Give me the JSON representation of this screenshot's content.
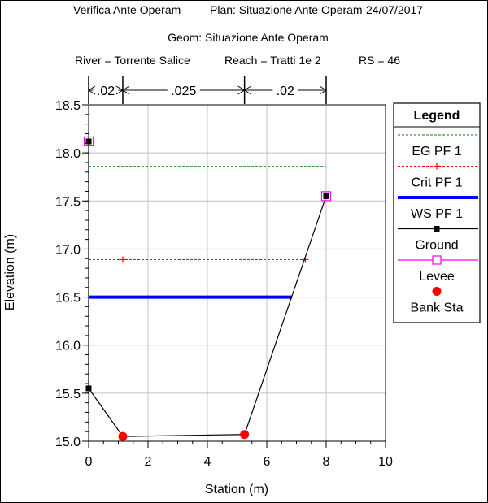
{
  "header": {
    "line1_left": "Verifica Ante Operam",
    "line1_plan": "Plan: Situazione Ante Operam",
    "line1_date": "24/07/2017",
    "line2": "Geom: Situazione Ante Operam",
    "line3_river": "River = Torrente Salice",
    "line3_reach": "Reach = Tratti 1e 2",
    "line3_rs": "RS = 46"
  },
  "colors": {
    "eg": "#008000",
    "crit": "#ff0000",
    "ws": "#0000ff",
    "ground": "#000000",
    "levee": "#ff00ff",
    "bank": "#ff0000",
    "grid": "#c0c0c0"
  },
  "chart_data": {
    "type": "line",
    "xlabel": "Station (m)",
    "ylabel": "Elevation (m)",
    "xlim": [
      0,
      10
    ],
    "ylim": [
      15.0,
      18.5
    ],
    "xticks": [
      "0",
      "2",
      "4",
      "6",
      "8",
      "10"
    ],
    "yticks": [
      "15.0",
      "15.5",
      "16.0",
      "16.5",
      "17.0",
      "17.5",
      "18.0",
      "18.5"
    ],
    "grid": true,
    "manning": [
      {
        "label": ".02",
        "x_start": 0,
        "x_end": 1.15
      },
      {
        "label": ".025",
        "x_start": 1.15,
        "x_end": 5.25
      },
      {
        "label": ".02",
        "x_start": 5.25,
        "x_end": 8.0
      }
    ],
    "series": [
      {
        "name": "EG PF 1",
        "x": [
          0,
          8.0
        ],
        "y": [
          17.86,
          17.86
        ]
      },
      {
        "name": "Crit PF 1",
        "x": [
          0,
          7.3
        ],
        "y": [
          16.89,
          16.89
        ],
        "markers_x": [
          1.15,
          7.3
        ]
      },
      {
        "name": "WS PF 1",
        "x": [
          0,
          6.85
        ],
        "y": [
          16.5,
          16.5
        ]
      },
      {
        "name": "Ground",
        "x": [
          0,
          0,
          1.15,
          5.25,
          8.0
        ],
        "y": [
          18.12,
          15.55,
          15.05,
          15.07,
          17.55
        ]
      },
      {
        "name": "Levee",
        "x": [
          0,
          8.0
        ],
        "y": [
          18.12,
          17.55
        ]
      },
      {
        "name": "Bank Sta",
        "x": [
          1.15,
          5.25
        ],
        "y": [
          15.05,
          15.07
        ]
      }
    ],
    "legend": {
      "title": "Legend",
      "position": "right",
      "entries": [
        "EG PF 1",
        "Crit PF 1",
        "WS PF 1",
        "Ground",
        "Levee",
        "Bank Sta"
      ]
    }
  }
}
